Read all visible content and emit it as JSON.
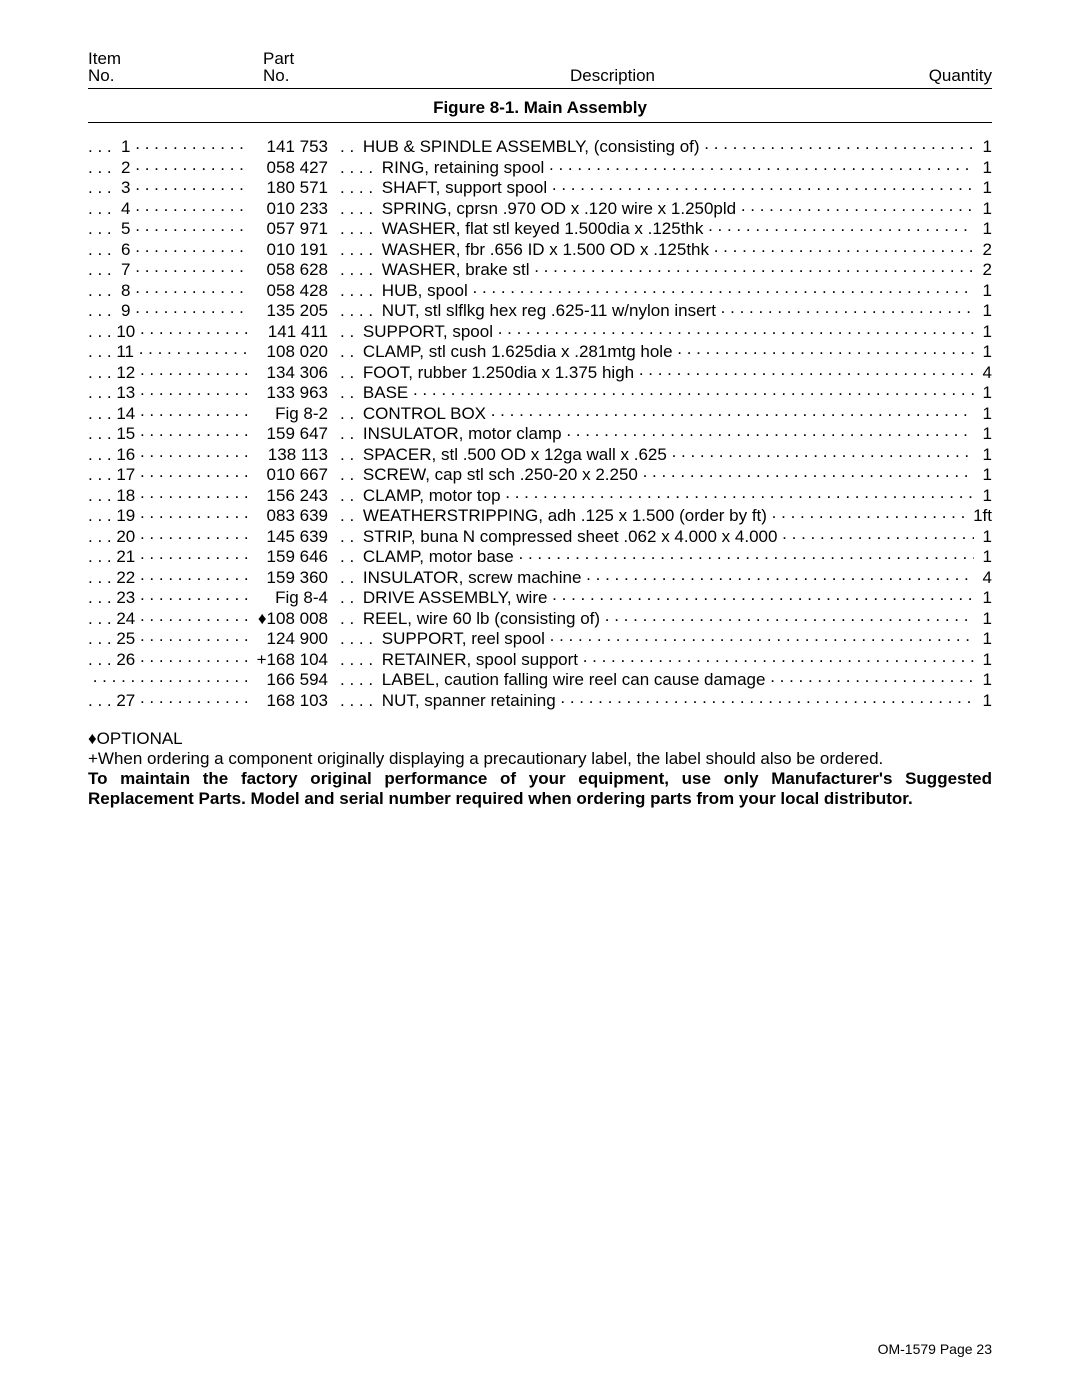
{
  "header": {
    "col1_line1": "Item",
    "col1_line2": "No.",
    "col2_line1": "Part",
    "col2_line2": "No.",
    "col3": "Description",
    "col4": "Quantity"
  },
  "figure_title": "Figure 8-1. Main Assembly",
  "rows": [
    {
      "item": "1",
      "part": "141 753",
      "indent": ". .",
      "desc": "HUB & SPINDLE ASSEMBLY, (consisting of)",
      "qty": "1"
    },
    {
      "item": "2",
      "part": "058 427",
      "indent": ". . . .",
      "desc": "RING, retaining spool",
      "qty": "1"
    },
    {
      "item": "3",
      "part": "180 571",
      "indent": ". . . .",
      "desc": "SHAFT, support spool",
      "qty": "1"
    },
    {
      "item": "4",
      "part": "010 233",
      "indent": ". . . .",
      "desc": "SPRING, cprsn .970 OD x .120 wire x 1.250pld",
      "qty": "1"
    },
    {
      "item": "5",
      "part": "057 971",
      "indent": ". . . .",
      "desc": "WASHER, flat stl keyed 1.500dia x .125thk",
      "qty": "1"
    },
    {
      "item": "6",
      "part": "010 191",
      "indent": ". . . .",
      "desc": "WASHER, fbr .656 ID x 1.500 OD x .125thk",
      "qty": "2"
    },
    {
      "item": "7",
      "part": "058 628",
      "indent": ". . . .",
      "desc": "WASHER, brake stl",
      "qty": "2"
    },
    {
      "item": "8",
      "part": "058 428",
      "indent": ". . . .",
      "desc": "HUB, spool",
      "qty": "1"
    },
    {
      "item": "9",
      "part": "135 205",
      "indent": ". . . .",
      "desc": "NUT, stl slflkg hex reg .625-11 w/nylon insert",
      "qty": "1"
    },
    {
      "item": "10",
      "part": "141 411",
      "indent": ". .",
      "desc": "SUPPORT, spool",
      "qty": "1"
    },
    {
      "item": "11",
      "part": "108 020",
      "indent": ". .",
      "desc": "CLAMP, stl cush 1.625dia x .281mtg hole",
      "qty": "1"
    },
    {
      "item": "12",
      "part": "134 306",
      "indent": ". .",
      "desc": "FOOT, rubber 1.250dia x 1.375 high",
      "qty": "4"
    },
    {
      "item": "13",
      "part": "133 963",
      "indent": ". .",
      "desc": "BASE",
      "qty": "1"
    },
    {
      "item": "14",
      "part": "Fig 8-2",
      "indent": ". .",
      "desc": "CONTROL BOX",
      "qty": "1"
    },
    {
      "item": "15",
      "part": "159 647",
      "indent": ". .",
      "desc": "INSULATOR, motor clamp",
      "qty": "1"
    },
    {
      "item": "16",
      "part": "138 113",
      "indent": ". .",
      "desc": "SPACER, stl .500 OD x 12ga wall x .625",
      "qty": "1"
    },
    {
      "item": "17",
      "part": "010 667",
      "indent": ". .",
      "desc": "SCREW, cap stl sch .250-20 x 2.250",
      "qty": "1"
    },
    {
      "item": "18",
      "part": "156 243",
      "indent": ". .",
      "desc": "CLAMP, motor top",
      "qty": "1"
    },
    {
      "item": "19",
      "part": "083 639",
      "indent": ". .",
      "desc": "WEATHERSTRIPPING, adh .125 x 1.500 (order by ft)",
      "qty": "1ft"
    },
    {
      "item": "20",
      "part": "145 639",
      "indent": ". .",
      "desc": "STRIP, buna N compressed sheet .062 x 4.000 x 4.000",
      "qty": "1"
    },
    {
      "item": "21",
      "part": "159 646",
      "indent": ". .",
      "desc": "CLAMP, motor base",
      "qty": "1"
    },
    {
      "item": "22",
      "part": "159 360",
      "indent": ". .",
      "desc": "INSULATOR, screw machine",
      "qty": "4"
    },
    {
      "item": "23",
      "part": "Fig 8-4",
      "indent": ". .",
      "desc": "DRIVE ASSEMBLY, wire",
      "qty": "1"
    },
    {
      "item": "24",
      "part": "♦108 008",
      "indent": ". .",
      "desc": "REEL, wire 60 lb (consisting of)",
      "qty": "1"
    },
    {
      "item": "25",
      "part": "124 900",
      "indent": ". . . .",
      "desc": "SUPPORT, reel spool",
      "qty": "1"
    },
    {
      "item": "26",
      "part": "+168 104",
      "indent": ". . . .",
      "desc": "RETAINER, spool support",
      "qty": "1"
    },
    {
      "item": "",
      "part": "166 594",
      "indent": ". . . .",
      "desc": "LABEL, caution falling wire reel can cause damage",
      "qty": "1"
    },
    {
      "item": "27",
      "part": "168 103",
      "indent": ". . . .",
      "desc": "NUT, spanner retaining",
      "qty": "1"
    }
  ],
  "notes": {
    "optional": "♦OPTIONAL",
    "plus": "+When ordering a component originally displaying a precautionary label, the label should also be ordered.",
    "bold": "To maintain the factory original performance of your equipment, use only Manufacturer's Suggested Replacement Parts. Model and serial number required when ordering parts from your local distributor."
  },
  "footer": "OM-1579 Page 23"
}
